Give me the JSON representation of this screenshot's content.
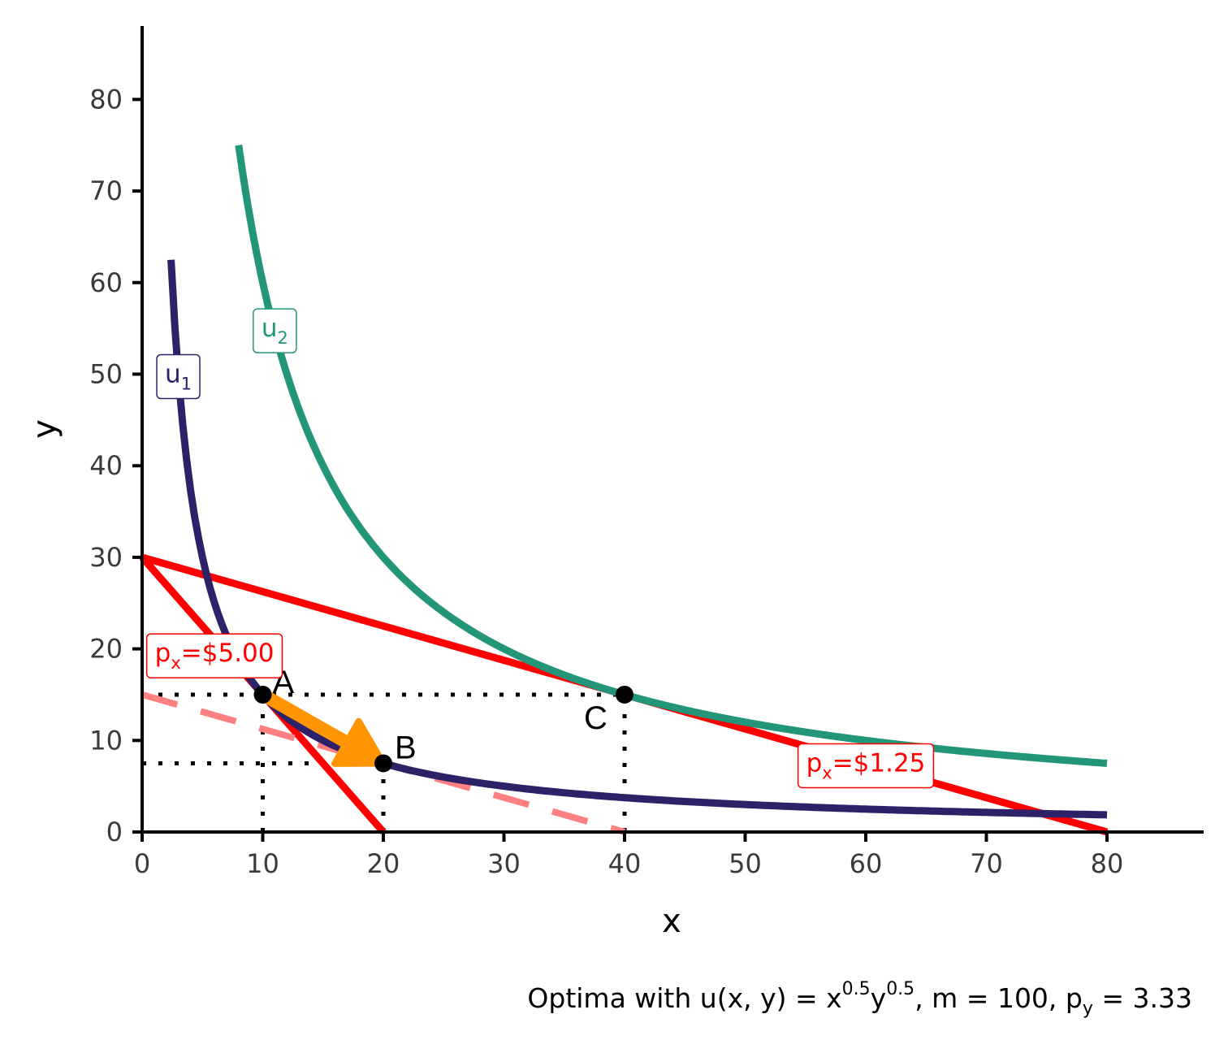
{
  "chart_data": {
    "type": "line",
    "xlabel": "x",
    "ylabel": "y",
    "xlim": [
      0,
      88
    ],
    "ylim": [
      0,
      88
    ],
    "x_ticks": [
      0,
      10,
      20,
      30,
      40,
      50,
      60,
      70,
      80
    ],
    "y_ticks": [
      0,
      10,
      20,
      30,
      40,
      50,
      60,
      70,
      80
    ],
    "grid": false,
    "caption": {
      "prefix": "Optima with u(x, y) = x",
      "exp_x": "0.5",
      "mid": "y",
      "exp_y": "0.5",
      "suffix": ", m = 100, p",
      "sub": "y",
      "tail": " = 3.33"
    },
    "indifference_curves": [
      {
        "id": "u1",
        "label_main": "u",
        "label_sub": "1",
        "utility": 12.247,
        "x_range": [
          2.4,
          80
        ],
        "label_at": [
          3,
          50
        ],
        "color": "#2d2168"
      },
      {
        "id": "u2",
        "label_main": "u",
        "label_sub": "2",
        "utility": 24.495,
        "x_range": [
          8,
          80
        ],
        "label_at": [
          11,
          55
        ],
        "color": "#23967a"
      }
    ],
    "budget_lines": [
      {
        "id": "budget-high-price",
        "points": [
          [
            0,
            30
          ],
          [
            20,
            0
          ]
        ],
        "color": "#ff0000",
        "dashed": false,
        "label_main": "p",
        "label_sub": "x",
        "label_rest": "=$5.00",
        "label_at": [
          6,
          19.5
        ]
      },
      {
        "id": "budget-low-price",
        "points": [
          [
            0,
            30
          ],
          [
            80,
            0
          ]
        ],
        "color": "#ff0000",
        "dashed": false,
        "label_main": "p",
        "label_sub": "x",
        "label_rest": "=$1.25",
        "label_at": [
          60,
          7.5
        ]
      },
      {
        "id": "budget-compensated",
        "points": [
          [
            0,
            15
          ],
          [
            40,
            0
          ]
        ],
        "color": "#ff8080",
        "dashed": true,
        "label_main": "",
        "label_sub": "",
        "label_rest": "",
        "label_at": null
      }
    ],
    "points": [
      {
        "label": "A",
        "x": 10,
        "y": 15
      },
      {
        "label": "B",
        "x": 20,
        "y": 7.5
      },
      {
        "label": "C",
        "x": 40,
        "y": 15
      }
    ],
    "arrow": {
      "from": [
        10,
        15
      ],
      "to": [
        20,
        7.5
      ],
      "color": "#ff9500"
    },
    "guides": [
      {
        "from": [
          0,
          15
        ],
        "to": [
          40,
          15
        ]
      },
      {
        "from": [
          0,
          7.5
        ],
        "to": [
          20,
          7.5
        ]
      },
      {
        "from": [
          10,
          0
        ],
        "to": [
          10,
          15
        ]
      },
      {
        "from": [
          20,
          0
        ],
        "to": [
          20,
          7.5
        ]
      },
      {
        "from": [
          40,
          0
        ],
        "to": [
          40,
          15
        ]
      }
    ]
  }
}
